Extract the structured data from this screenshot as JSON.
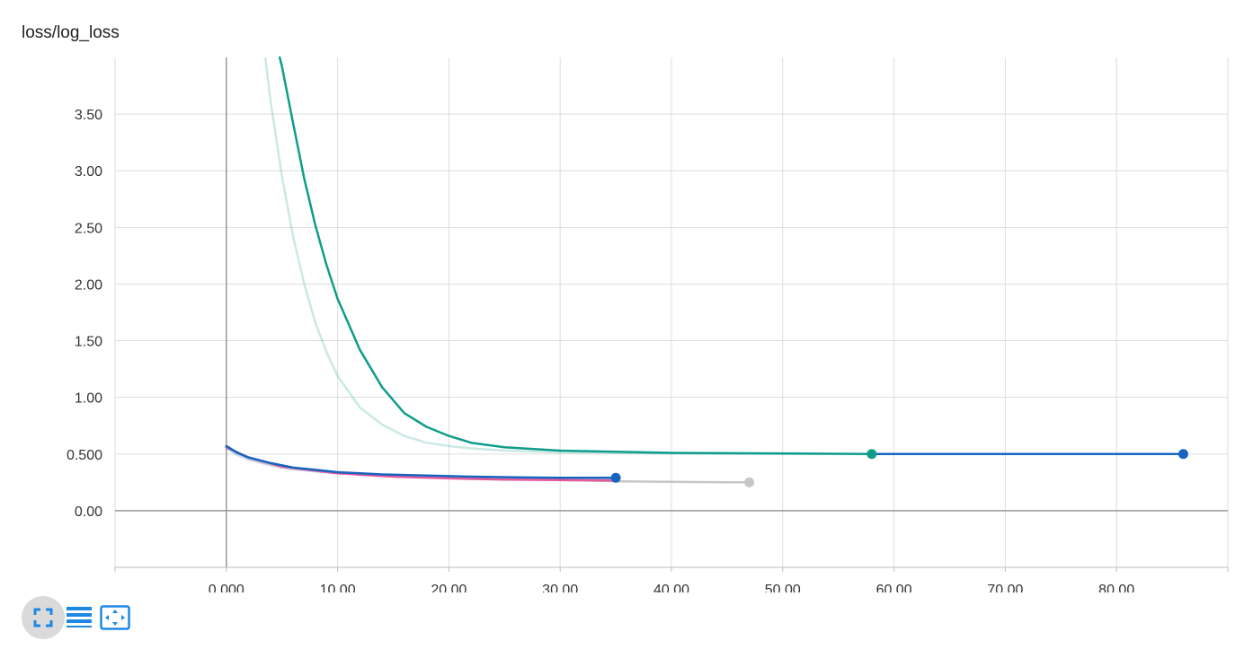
{
  "title": "loss/log_loss",
  "toolbar": {
    "buttons": [
      {
        "name": "expand-chart-button",
        "icon": "fullscreen-icon",
        "active": true
      },
      {
        "name": "toggle-log-scale-button",
        "icon": "lines-icon",
        "active": false
      },
      {
        "name": "fit-domain-button",
        "icon": "fit-to-data-icon",
        "active": false
      }
    ],
    "icon_color": "#1e88e5"
  },
  "chart_data": {
    "type": "line",
    "title": "loss/log_loss",
    "xlabel": "",
    "ylabel": "",
    "xlim": [
      -10,
      90
    ],
    "ylim": [
      -0.5,
      4.0
    ],
    "x_ticks": [
      0,
      10,
      20,
      30,
      40,
      50,
      60,
      70,
      80
    ],
    "x_tick_labels": [
      "0.000",
      "10.00",
      "20.00",
      "30.00",
      "40.00",
      "50.00",
      "60.00",
      "70.00",
      "80.00"
    ],
    "y_ticks": [
      0,
      0.5,
      1.0,
      1.5,
      2.0,
      2.5,
      3.0,
      3.5
    ],
    "y_tick_labels": [
      "0.00",
      "0.500",
      "1.00",
      "1.50",
      "2.00",
      "2.50",
      "3.00",
      "3.50"
    ],
    "grid": true,
    "series": [
      {
        "color": "#c6c6c6",
        "endpoint_marker": true,
        "smoothed": [
          [
            0,
            0.56
          ],
          [
            2,
            0.46
          ],
          [
            5,
            0.38
          ],
          [
            10,
            0.33
          ],
          [
            15,
            0.31
          ],
          [
            20,
            0.29
          ],
          [
            25,
            0.28
          ],
          [
            30,
            0.27
          ],
          [
            35,
            0.26
          ],
          [
            40,
            0.255
          ],
          [
            45,
            0.25
          ],
          [
            47,
            0.25
          ]
        ],
        "raw": []
      },
      {
        "color": "#e7589c",
        "endpoint_marker": false,
        "smoothed": [
          [
            0,
            0.56
          ],
          [
            2,
            0.47
          ],
          [
            5,
            0.39
          ],
          [
            10,
            0.33
          ],
          [
            15,
            0.3
          ],
          [
            20,
            0.285
          ],
          [
            25,
            0.275
          ],
          [
            30,
            0.27
          ],
          [
            35,
            0.265
          ]
        ],
        "raw": []
      },
      {
        "color": "#0f9d8a",
        "endpoint_marker": true,
        "smoothed": [
          [
            4.8,
            4.0
          ],
          [
            5,
            3.92
          ],
          [
            6,
            3.42
          ],
          [
            7,
            2.93
          ],
          [
            8,
            2.52
          ],
          [
            9,
            2.17
          ],
          [
            10,
            1.87
          ],
          [
            12,
            1.42
          ],
          [
            14,
            1.09
          ],
          [
            16,
            0.86
          ],
          [
            18,
            0.74
          ],
          [
            20,
            0.66
          ],
          [
            22,
            0.6
          ],
          [
            25,
            0.56
          ],
          [
            30,
            0.53
          ],
          [
            35,
            0.52
          ],
          [
            40,
            0.51
          ],
          [
            50,
            0.505
          ],
          [
            58,
            0.5
          ]
        ],
        "raw": [
          [
            3.5,
            4.0
          ],
          [
            4,
            3.6
          ],
          [
            5,
            2.95
          ],
          [
            6,
            2.42
          ],
          [
            7,
            2.0
          ],
          [
            8,
            1.66
          ],
          [
            9,
            1.4
          ],
          [
            10,
            1.19
          ],
          [
            12,
            0.91
          ],
          [
            14,
            0.76
          ],
          [
            16,
            0.66
          ],
          [
            18,
            0.6
          ],
          [
            20,
            0.57
          ],
          [
            22,
            0.55
          ],
          [
            25,
            0.53
          ],
          [
            30,
            0.515
          ],
          [
            35,
            0.51
          ],
          [
            40,
            0.505
          ],
          [
            50,
            0.5
          ],
          [
            58,
            0.5
          ]
        ]
      },
      {
        "color": "#1565c0",
        "endpoint_marker": true,
        "smoothed": [
          [
            0,
            0.57
          ],
          [
            1,
            0.51
          ],
          [
            2,
            0.47
          ],
          [
            4,
            0.42
          ],
          [
            6,
            0.38
          ],
          [
            8,
            0.36
          ],
          [
            10,
            0.34
          ],
          [
            14,
            0.32
          ],
          [
            18,
            0.31
          ],
          [
            22,
            0.3
          ],
          [
            26,
            0.295
          ],
          [
            30,
            0.29
          ],
          [
            35,
            0.29
          ]
        ],
        "raw": [
          [
            0,
            0.55
          ],
          [
            1,
            0.49
          ],
          [
            2,
            0.45
          ],
          [
            4,
            0.4
          ],
          [
            6,
            0.365
          ],
          [
            8,
            0.345
          ],
          [
            10,
            0.33
          ],
          [
            14,
            0.315
          ],
          [
            18,
            0.305
          ],
          [
            22,
            0.298
          ],
          [
            26,
            0.292
          ],
          [
            30,
            0.288
          ],
          [
            35,
            0.285
          ]
        ]
      },
      {
        "color": "#1565c0",
        "endpoint_marker": true,
        "smoothed": [
          [
            58,
            0.5
          ],
          [
            60,
            0.5
          ],
          [
            65,
            0.5
          ],
          [
            70,
            0.5
          ],
          [
            75,
            0.5
          ],
          [
            80,
            0.5
          ],
          [
            86,
            0.5
          ]
        ],
        "raw": []
      }
    ]
  }
}
